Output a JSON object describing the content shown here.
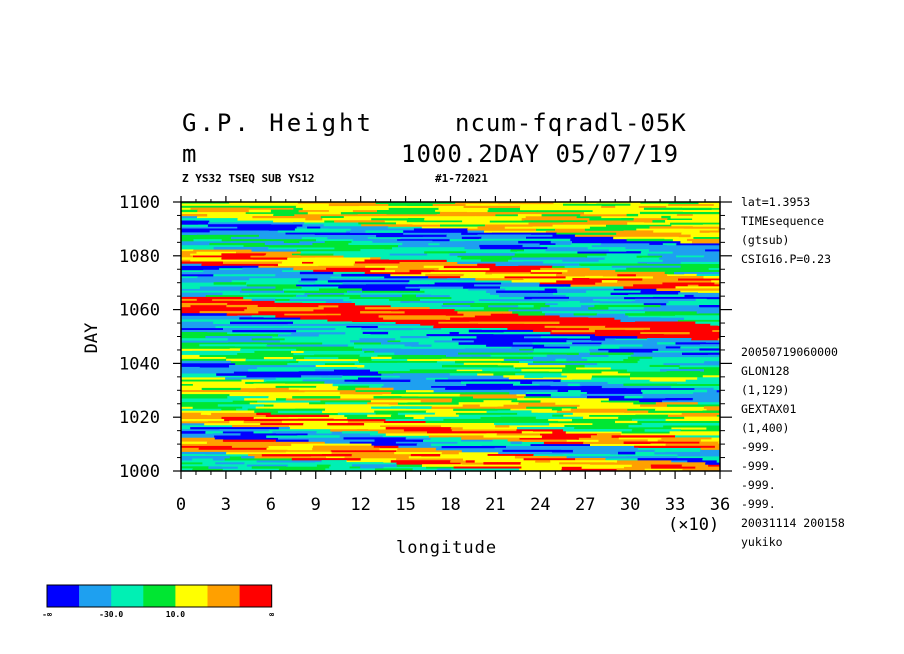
{
  "header": {
    "title_left": "G.P. Height",
    "title_right": "ncum-fqradl-05K",
    "unit": "m",
    "date": "1000.2DAY 05/07/19",
    "sub_left": "Z YS32 TSEQ SUB YS12",
    "sub_right": "#1-72021"
  },
  "side_info_top": [
    "lat=1.3953",
    "TIMEsequence",
    "(gtsub)",
    "CSIG16.P=0.23"
  ],
  "side_info_bottom": [
    "20050719060000",
    "GLON128",
    "(1,129)",
    "GEXTAX01",
    "(1,400)",
    "-999.",
    "-999.",
    "-999.",
    "-999.",
    "20031114 200158",
    "yukiko"
  ],
  "colorbar": {
    "colors": [
      "#0000ff",
      "#1ea0f0",
      "#00f0b4",
      "#00e632",
      "#ffff00",
      "#ffa000",
      "#ff0000"
    ],
    "tick_labels": [
      "-∞",
      "-30.0",
      "10.0",
      "∞"
    ]
  },
  "chart_data": {
    "type": "heatmap",
    "title": "G.P. Height",
    "xlabel": "longitude",
    "x_multiplier": "(×10)",
    "ylabel": "DAY",
    "xlim": [
      0,
      360
    ],
    "ylim": [
      1000,
      1100
    ],
    "x_ticks": [
      "0",
      "3",
      "6",
      "9",
      "12",
      "15",
      "18",
      "21",
      "24",
      "27",
      "30",
      "33",
      "36"
    ],
    "y_ticks": [
      "1000",
      "1020",
      "1040",
      "1060",
      "1080",
      "1100"
    ],
    "levels": [
      "-∞",
      "-30.0",
      "10.0",
      "∞"
    ],
    "field_description_bands": [
      {
        "day": 1004,
        "level": 2
      },
      {
        "day": 1010,
        "level": 5
      },
      {
        "day": 1016,
        "level": 1
      },
      {
        "day": 1020,
        "level": 5
      },
      {
        "day": 1026,
        "level": 3
      },
      {
        "day": 1032,
        "level": 4
      },
      {
        "day": 1038,
        "level": 1
      },
      {
        "day": 1044,
        "level": 3
      },
      {
        "day": 1050,
        "level": 2
      },
      {
        "day": 1056,
        "level": 1
      },
      {
        "day": 1062,
        "level": 6
      },
      {
        "day": 1068,
        "level": 2
      },
      {
        "day": 1074,
        "level": 1
      },
      {
        "day": 1080,
        "level": 5
      },
      {
        "day": 1086,
        "level": 2
      },
      {
        "day": 1092,
        "level": 1
      },
      {
        "day": 1098,
        "level": 4
      }
    ]
  }
}
